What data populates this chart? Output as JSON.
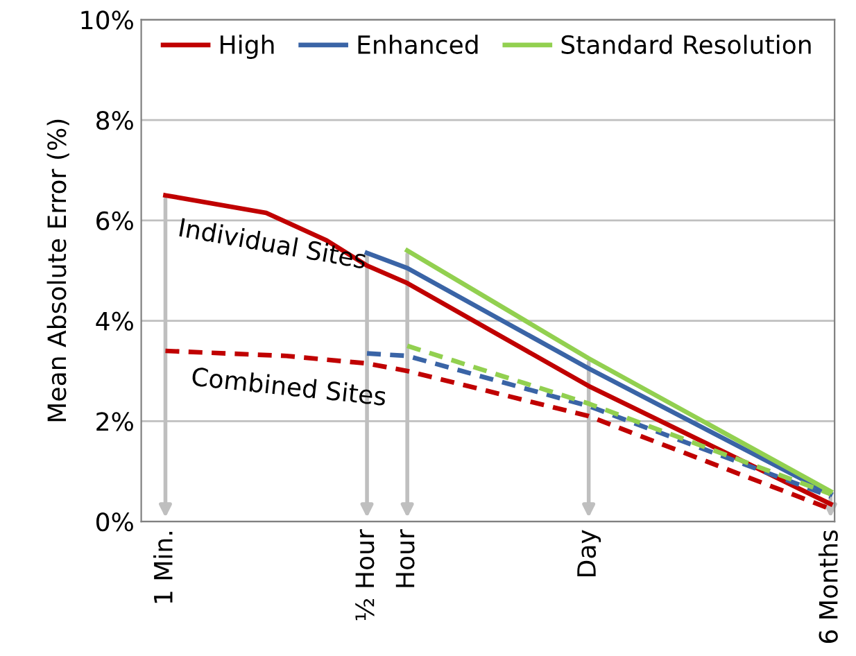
{
  "chart_data": {
    "type": "line",
    "ylabel": "Mean Absolute Error (%)",
    "categories": [
      "1 Min.",
      null,
      null,
      null,
      null,
      null,
      null,
      null,
      null,
      null,
      "½ Hour",
      null,
      "Hour",
      null,
      null,
      null,
      null,
      null,
      null,
      null,
      null,
      "Day",
      null,
      null,
      null,
      null,
      null,
      null,
      null,
      null,
      null,
      null,
      null,
      "6 Months"
    ],
    "ylim": [
      0,
      10
    ],
    "yticks": [
      {
        "value": 0,
        "label": "0%"
      },
      {
        "value": 2,
        "label": "2%"
      },
      {
        "value": 4,
        "label": "4%"
      },
      {
        "value": 6,
        "label": "6%"
      },
      {
        "value": 8,
        "label": "8%"
      },
      {
        "value": 10,
        "label": "10%"
      }
    ],
    "grid": "y",
    "legend": "top",
    "marker": "none",
    "series": [
      {
        "name": "High",
        "color": "#c00000",
        "line_style": "solid",
        "values": [
          6.5,
          null,
          null,
          null,
          null,
          6.15,
          null,
          null,
          5.6,
          null,
          5.1,
          null,
          4.75,
          null,
          null,
          null,
          null,
          null,
          null,
          null,
          null,
          2.7,
          null,
          null,
          null,
          null,
          null,
          null,
          null,
          null,
          null,
          null,
          null,
          0.35
        ]
      },
      {
        "name": "Enhanced",
        "color": "#3a64a6",
        "line_style": "solid",
        "values": [
          null,
          null,
          null,
          null,
          null,
          null,
          null,
          null,
          null,
          null,
          5.35,
          null,
          5.05,
          null,
          null,
          null,
          null,
          null,
          null,
          null,
          null,
          3.05,
          null,
          null,
          null,
          null,
          null,
          null,
          null,
          null,
          null,
          null,
          null,
          0.55
        ]
      },
      {
        "name": "Standard Resolution",
        "color": "#92d050",
        "line_style": "solid",
        "values": [
          null,
          null,
          null,
          null,
          null,
          null,
          null,
          null,
          null,
          null,
          null,
          null,
          5.4,
          null,
          null,
          null,
          null,
          null,
          null,
          null,
          null,
          3.25,
          null,
          null,
          null,
          null,
          null,
          null,
          null,
          null,
          null,
          null,
          null,
          0.6
        ]
      },
      {
        "color": "#c00000",
        "line_style": "dashed",
        "values": [
          3.4,
          null,
          null,
          null,
          null,
          null,
          3.3,
          null,
          null,
          null,
          3.15,
          null,
          3.0,
          null,
          null,
          null,
          null,
          null,
          null,
          null,
          null,
          2.1,
          null,
          null,
          null,
          null,
          null,
          null,
          null,
          null,
          null,
          null,
          null,
          0.25
        ]
      },
      {
        "color": "#3a64a6",
        "line_style": "dashed",
        "values": [
          null,
          null,
          null,
          null,
          null,
          null,
          null,
          null,
          null,
          null,
          3.35,
          null,
          3.3,
          null,
          null,
          null,
          null,
          null,
          null,
          null,
          null,
          2.3,
          null,
          null,
          null,
          null,
          null,
          null,
          null,
          null,
          null,
          null,
          null,
          0.5
        ]
      },
      {
        "color": "#92d050",
        "line_style": "dashed",
        "values": [
          null,
          null,
          null,
          null,
          null,
          null,
          null,
          null,
          null,
          null,
          null,
          null,
          3.5,
          null,
          null,
          null,
          null,
          null,
          null,
          null,
          null,
          2.35,
          null,
          null,
          null,
          null,
          null,
          null,
          null,
          null,
          null,
          null,
          null,
          0.55
        ]
      }
    ],
    "annotations": [
      "Individual Sites",
      "Combined Sites"
    ]
  }
}
